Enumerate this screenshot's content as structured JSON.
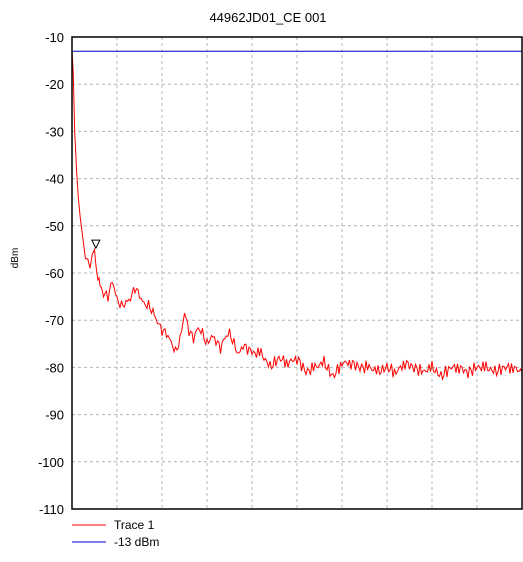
{
  "chart_data": {
    "type": "line",
    "title": "44962JD01_CE 001",
    "ylabel": "dBm",
    "xlabel": "",
    "ylim": [
      -110,
      -10
    ],
    "yticks": [
      -10,
      -20,
      -30,
      -40,
      -50,
      -60,
      -70,
      -80,
      -90,
      -100,
      -110
    ],
    "grid": true,
    "legend_placement": "bottom-left",
    "colors": {
      "trace": "#ff0000",
      "limit": "#0000cc",
      "grid": "#b4b4b4"
    },
    "marker": {
      "type": "triangle-down",
      "x": 0.053,
      "y": -56
    },
    "series": [
      {
        "name": "Trace 1",
        "color": "#ff0000",
        "x": [
          0.0,
          0.003,
          0.006,
          0.01,
          0.014,
          0.018,
          0.022,
          0.026,
          0.03,
          0.035,
          0.04,
          0.045,
          0.05,
          0.055,
          0.06,
          0.065,
          0.07,
          0.08,
          0.09,
          0.1,
          0.11,
          0.12,
          0.13,
          0.14,
          0.15,
          0.16,
          0.17,
          0.18,
          0.19,
          0.2,
          0.21,
          0.22,
          0.23,
          0.24,
          0.25,
          0.26,
          0.27,
          0.28,
          0.29,
          0.3,
          0.31,
          0.32,
          0.33,
          0.34,
          0.35,
          0.36,
          0.37,
          0.38,
          0.39,
          0.4,
          0.42,
          0.44,
          0.46,
          0.48,
          0.5,
          0.52,
          0.54,
          0.56,
          0.58,
          0.6,
          0.62,
          0.64,
          0.66,
          0.68,
          0.7,
          0.72,
          0.74,
          0.76,
          0.78,
          0.8,
          0.82,
          0.84,
          0.86,
          0.88,
          0.9,
          0.92,
          0.94,
          0.96,
          0.98,
          1.0
        ],
        "y": [
          -13,
          -18,
          -30,
          -38,
          -44,
          -48,
          -51,
          -54,
          -57,
          -57,
          -59,
          -56,
          -55,
          -61,
          -62,
          -63,
          -64,
          -65,
          -62,
          -66,
          -67,
          -66,
          -65,
          -63,
          -65,
          -67,
          -67,
          -68,
          -70,
          -72,
          -73,
          -75,
          -77,
          -74,
          -68,
          -72,
          -74,
          -72,
          -73,
          -75,
          -73,
          -74,
          -76,
          -74,
          -73,
          -75,
          -77,
          -75,
          -76,
          -77,
          -77,
          -80,
          -78,
          -79,
          -78,
          -81,
          -80,
          -79,
          -82,
          -79,
          -79,
          -80,
          -80,
          -81,
          -80,
          -81,
          -79,
          -80,
          -81,
          -80,
          -82,
          -80,
          -80,
          -81,
          -80,
          -80,
          -81,
          -80,
          -80,
          -81
        ]
      },
      {
        "name": "-13 dBm",
        "color": "#0000cc",
        "x": [
          0.0,
          1.0
        ],
        "y": [
          -13,
          -13
        ]
      }
    ]
  }
}
